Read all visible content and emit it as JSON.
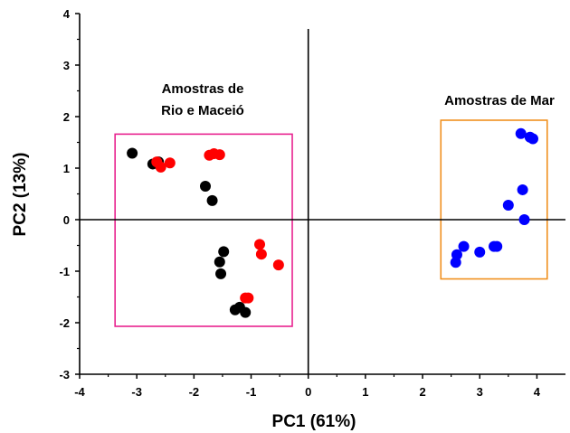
{
  "chart_data": {
    "type": "scatter",
    "xlabel": "PC1 (61%)",
    "ylabel": "PC2 (13%)",
    "xlim": [
      -4,
      4.5
    ],
    "ylim": [
      -3,
      4
    ],
    "xticks": [
      "-4",
      "-3",
      "-2",
      "-1",
      "0",
      "1",
      "2",
      "3",
      "4"
    ],
    "yticks": [
      "-3",
      "-2",
      "-1",
      "0",
      "1",
      "2",
      "3",
      "4"
    ],
    "zero_lines": true,
    "legend": "none",
    "colors": {
      "black_series": "#000000",
      "red_series": "#ff0000",
      "blue_series": "#0000ff",
      "box_rio": "#e8228f",
      "box_mar": "#f0901e"
    },
    "series": [
      {
        "color": "#000000",
        "points": [
          [
            -3.08,
            1.29
          ],
          [
            -2.72,
            1.08
          ],
          [
            -2.62,
            1.12
          ],
          [
            -1.8,
            0.65
          ],
          [
            -1.68,
            0.37
          ],
          [
            -1.55,
            -0.82
          ],
          [
            -1.53,
            -1.05
          ],
          [
            -1.48,
            -0.62
          ],
          [
            -1.28,
            -1.75
          ],
          [
            -1.2,
            -1.7
          ],
          [
            -1.1,
            -1.8
          ]
        ]
      },
      {
        "color": "#ff0000",
        "points": [
          [
            -2.65,
            1.12
          ],
          [
            -2.58,
            1.02
          ],
          [
            -2.42,
            1.1
          ],
          [
            -1.73,
            1.25
          ],
          [
            -1.65,
            1.28
          ],
          [
            -1.55,
            1.26
          ],
          [
            -1.1,
            -1.52
          ],
          [
            -1.05,
            -1.52
          ],
          [
            -0.85,
            -0.48
          ],
          [
            -0.82,
            -0.67
          ],
          [
            -0.52,
            -0.88
          ]
        ]
      },
      {
        "color": "#0000ff",
        "points": [
          [
            2.58,
            -0.83
          ],
          [
            2.6,
            -0.68
          ],
          [
            2.72,
            -0.52
          ],
          [
            3.0,
            -0.63
          ],
          [
            3.25,
            -0.52
          ],
          [
            3.3,
            -0.52
          ],
          [
            3.5,
            0.28
          ],
          [
            3.72,
            1.67
          ],
          [
            3.75,
            0.58
          ],
          [
            3.78,
            0.0
          ],
          [
            3.88,
            1.6
          ],
          [
            3.93,
            1.57
          ]
        ]
      }
    ],
    "annotations": [
      {
        "text": [
          "Amostras de",
          "Rio e Maceió"
        ]
      },
      {
        "text": [
          "Amostras de Mar"
        ]
      }
    ],
    "boxes": [
      {
        "x": [
          -3.38,
          -0.28
        ],
        "y": [
          -2.07,
          1.66
        ]
      },
      {
        "x": [
          2.32,
          4.18
        ],
        "y": [
          -1.15,
          1.93
        ]
      }
    ]
  }
}
